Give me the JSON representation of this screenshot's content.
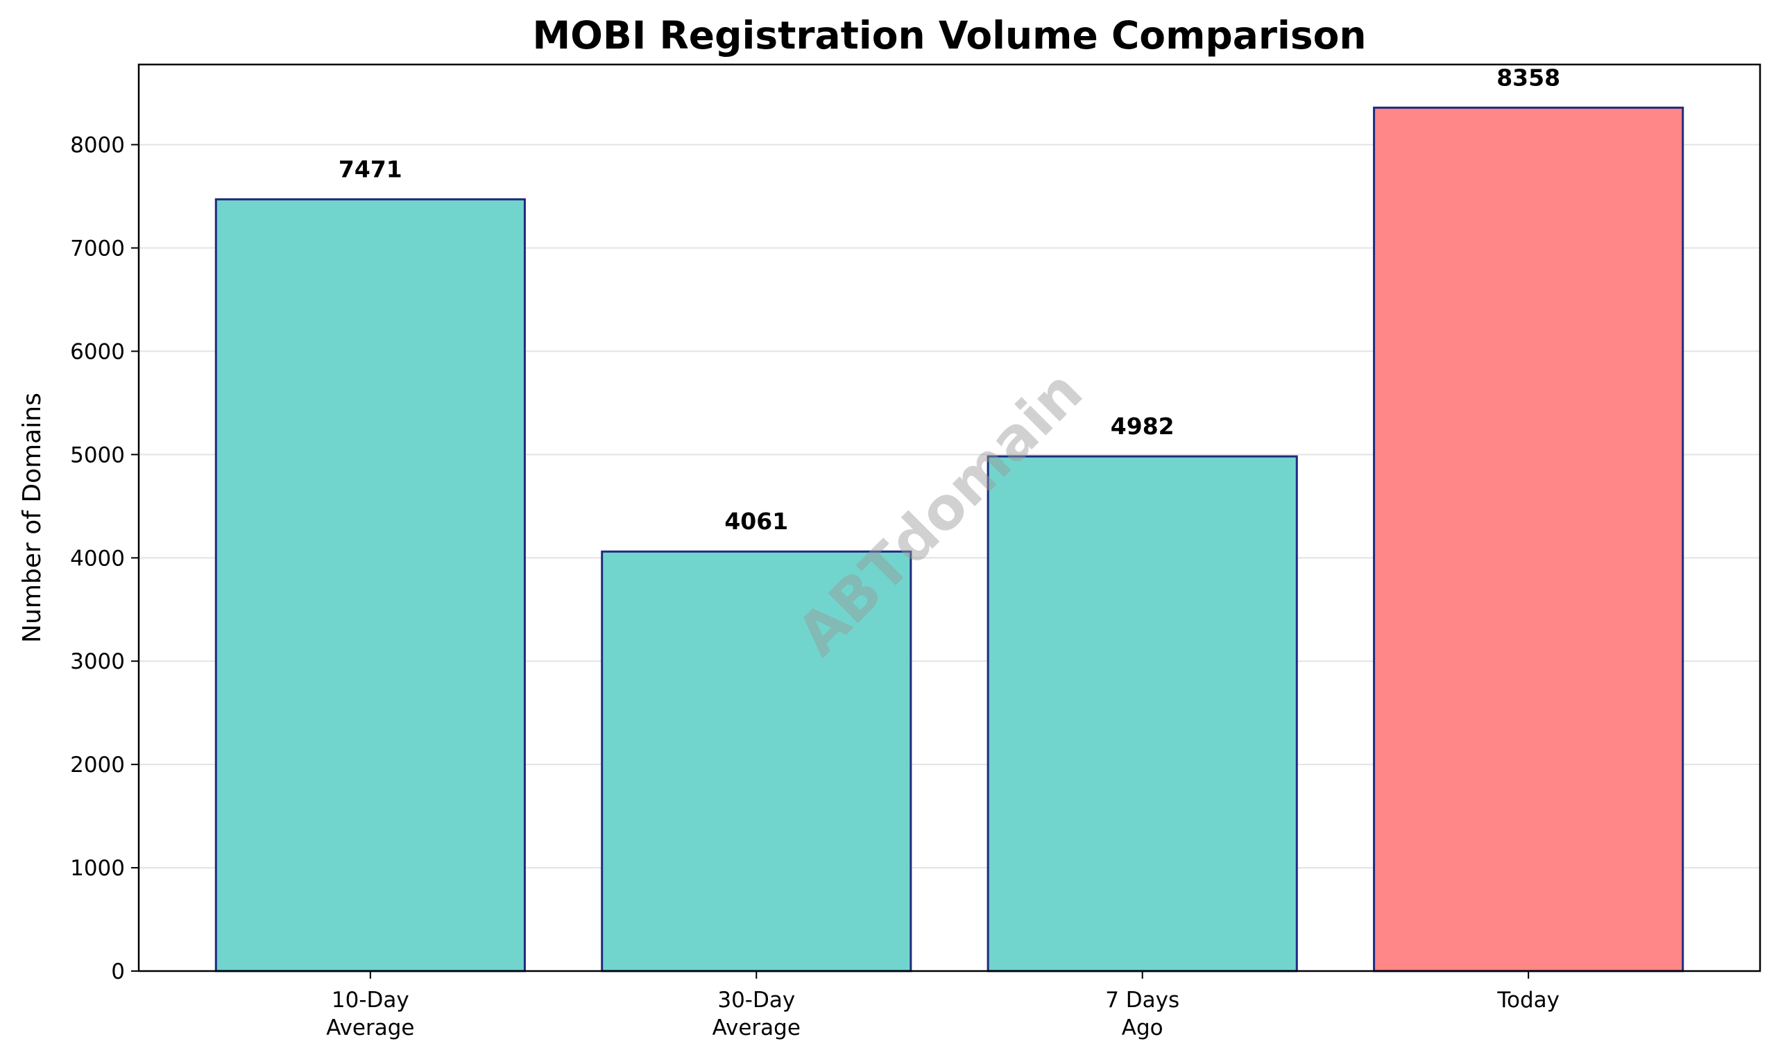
{
  "chart_data": {
    "type": "bar",
    "title": "MOBI Registration Volume Comparison",
    "xlabel": "",
    "ylabel": "Number of Domains",
    "categories": [
      [
        "10-Day",
        "Average"
      ],
      [
        "30-Day",
        "Average"
      ],
      [
        "7 Days",
        "Ago"
      ],
      [
        "Today"
      ]
    ],
    "values": [
      7471,
      4061,
      4982,
      8358
    ],
    "value_labels": [
      "7471",
      "4061",
      "4982",
      "8358"
    ],
    "ylim": [
      0,
      8776
    ],
    "yticks": [
      0,
      1000,
      2000,
      3000,
      4000,
      5000,
      6000,
      7000,
      8000
    ],
    "ytick_labels": [
      "0",
      "1000",
      "2000",
      "3000",
      "4000",
      "5000",
      "6000",
      "7000",
      "8000"
    ],
    "grid": "horizontal",
    "legend": "none",
    "colors": {
      "default_bar": "#72d5cd",
      "highlight_bar": "#ff8787",
      "bar_edge": "#1f2a80",
      "grid": "#e3e3e3"
    },
    "highlight_index": 3,
    "watermark": "ABTdomain"
  }
}
